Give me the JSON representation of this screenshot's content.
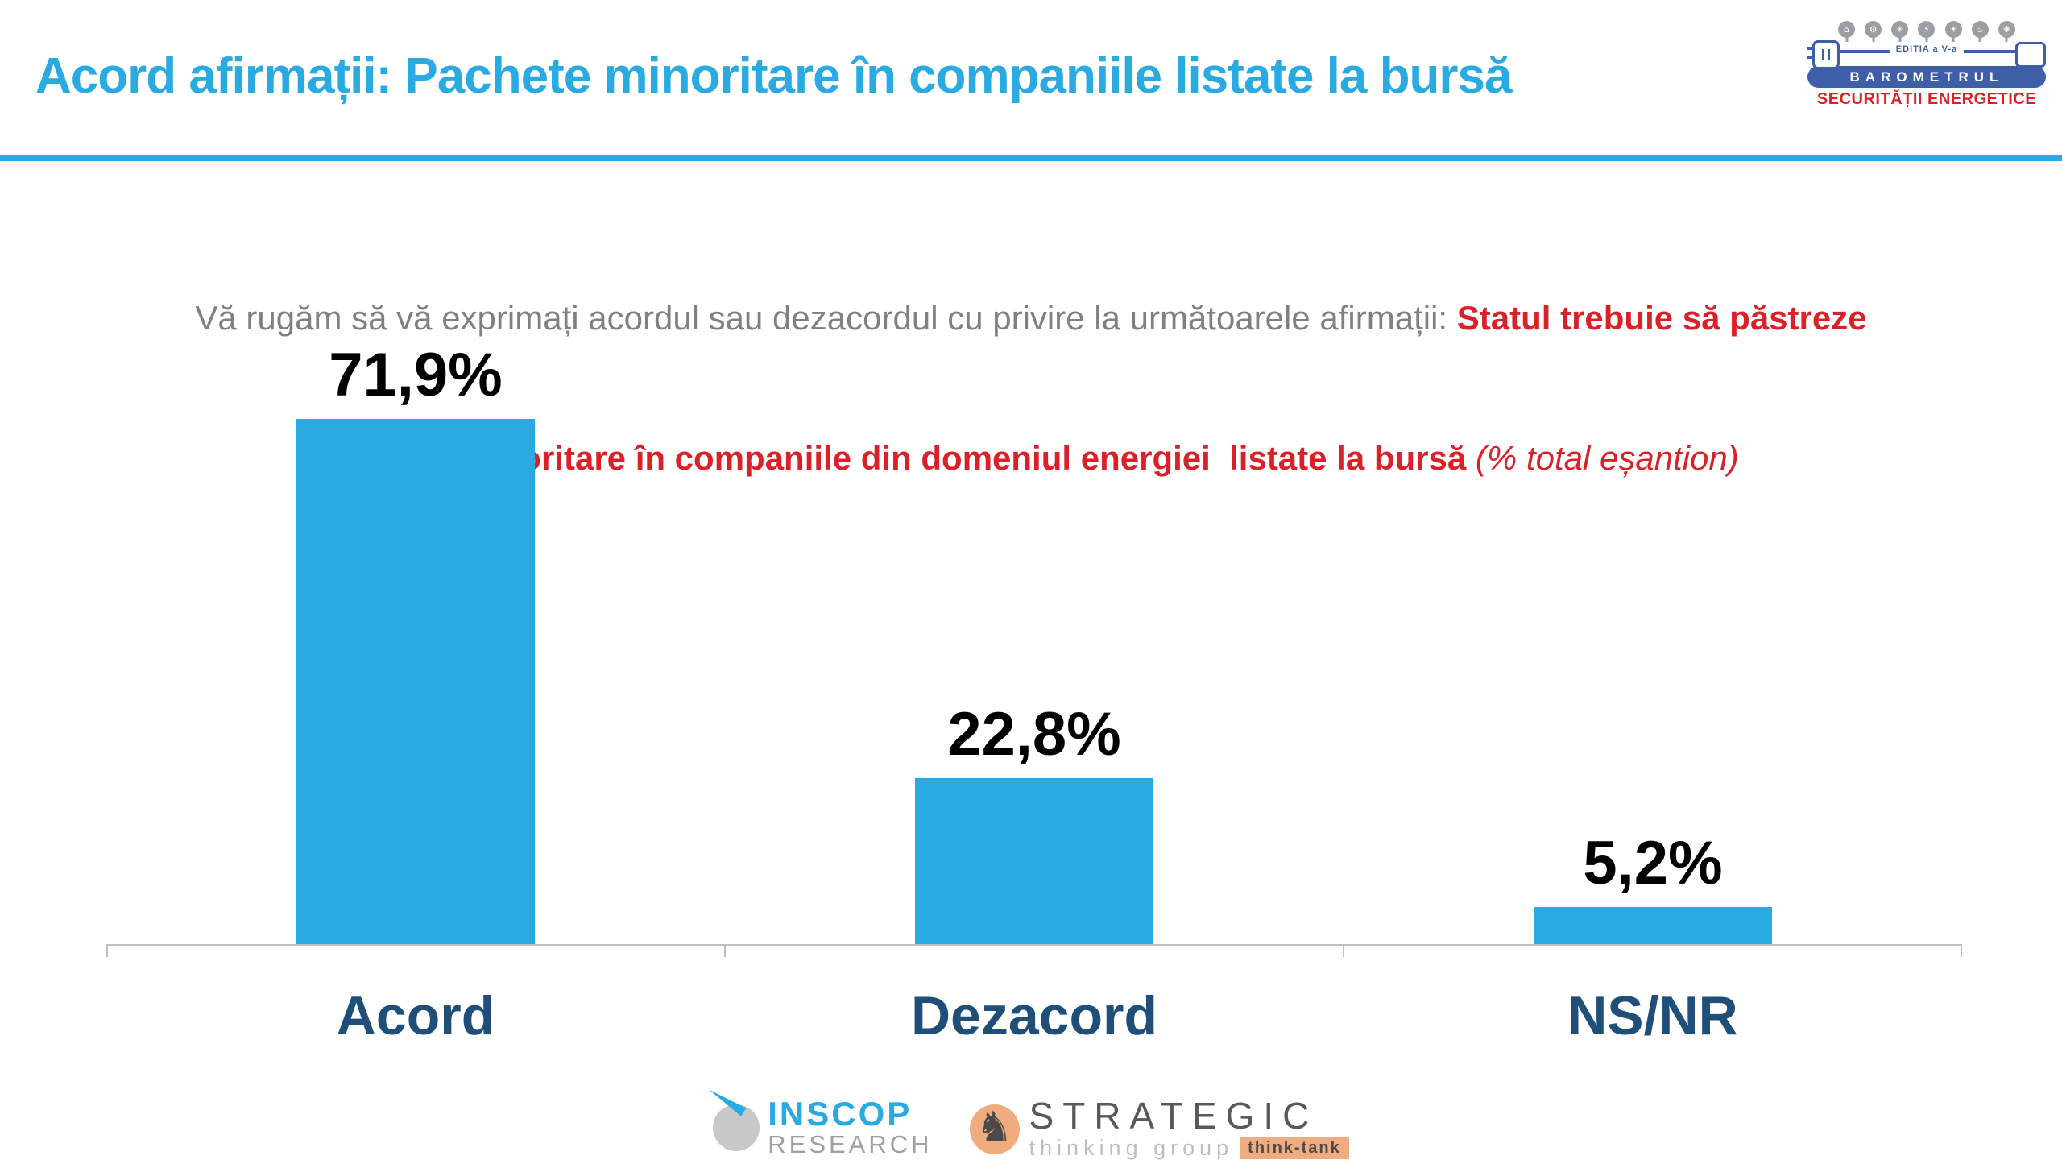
{
  "header": {
    "title": "Acord afirmații: Pachete minoritare în companiile listate la bursă",
    "accent_color": "#29ABE2"
  },
  "logo": {
    "edition": "EDITIA a V-a",
    "name": "BAROMETRUL",
    "subname": "SECURITĂȚII ENERGETICE",
    "pin_icons": [
      "factory-icon",
      "gear-icon",
      "wind-turbine-icon",
      "lightning-icon",
      "sun-icon",
      "building-icon",
      "droplet-icon"
    ],
    "pin_glyphs": [
      "⌂",
      "⚙",
      "✳",
      "⚡",
      "☀",
      "♨",
      "❋"
    ],
    "pill_color": "#3F5EA8",
    "red_color": "#DA2128"
  },
  "subtitle": {
    "line1_gray": "Vă rugăm să vă exprimați acordul sau dezacordul cu privire la următoarele afirmații: ",
    "line1_red": "Statul trebuie să păstreze",
    "line2_red": "pachete minoritare în companiile din domeniul energiei  listate la bursă ",
    "line2_italic": "(% total eșantion)",
    "gray_color": "#808080",
    "red_color": "#DA2128"
  },
  "chart_data": {
    "type": "bar",
    "title": "Acord afirmații: Pachete minoritare în companiile listate la bursă",
    "categories": [
      "Acord",
      "Dezacord",
      "NS/NR"
    ],
    "values": [
      71.9,
      22.8,
      5.2
    ],
    "value_labels": [
      "71,9%",
      "22,8%",
      "5,2%"
    ],
    "unit": "% total eșantion",
    "bar_color": "#29ABE2",
    "value_label_color": "#000000",
    "category_label_color": "#1F4E79",
    "axis_color": "#BFBFBF",
    "ylim": [
      0,
      80
    ],
    "grid": false,
    "legend": false
  },
  "footer": {
    "inscop": {
      "name": "INSCOP",
      "sub": "RESEARCH",
      "name_color": "#29ABE2",
      "sub_color": "#9D9FA2"
    },
    "strategic": {
      "name": "STRATEGIC",
      "sub": "thinking group",
      "badge": "think-tank",
      "name_color": "#58595B",
      "sub_color": "#BCBEC0",
      "badge_bg": "#F0AC7E"
    }
  }
}
